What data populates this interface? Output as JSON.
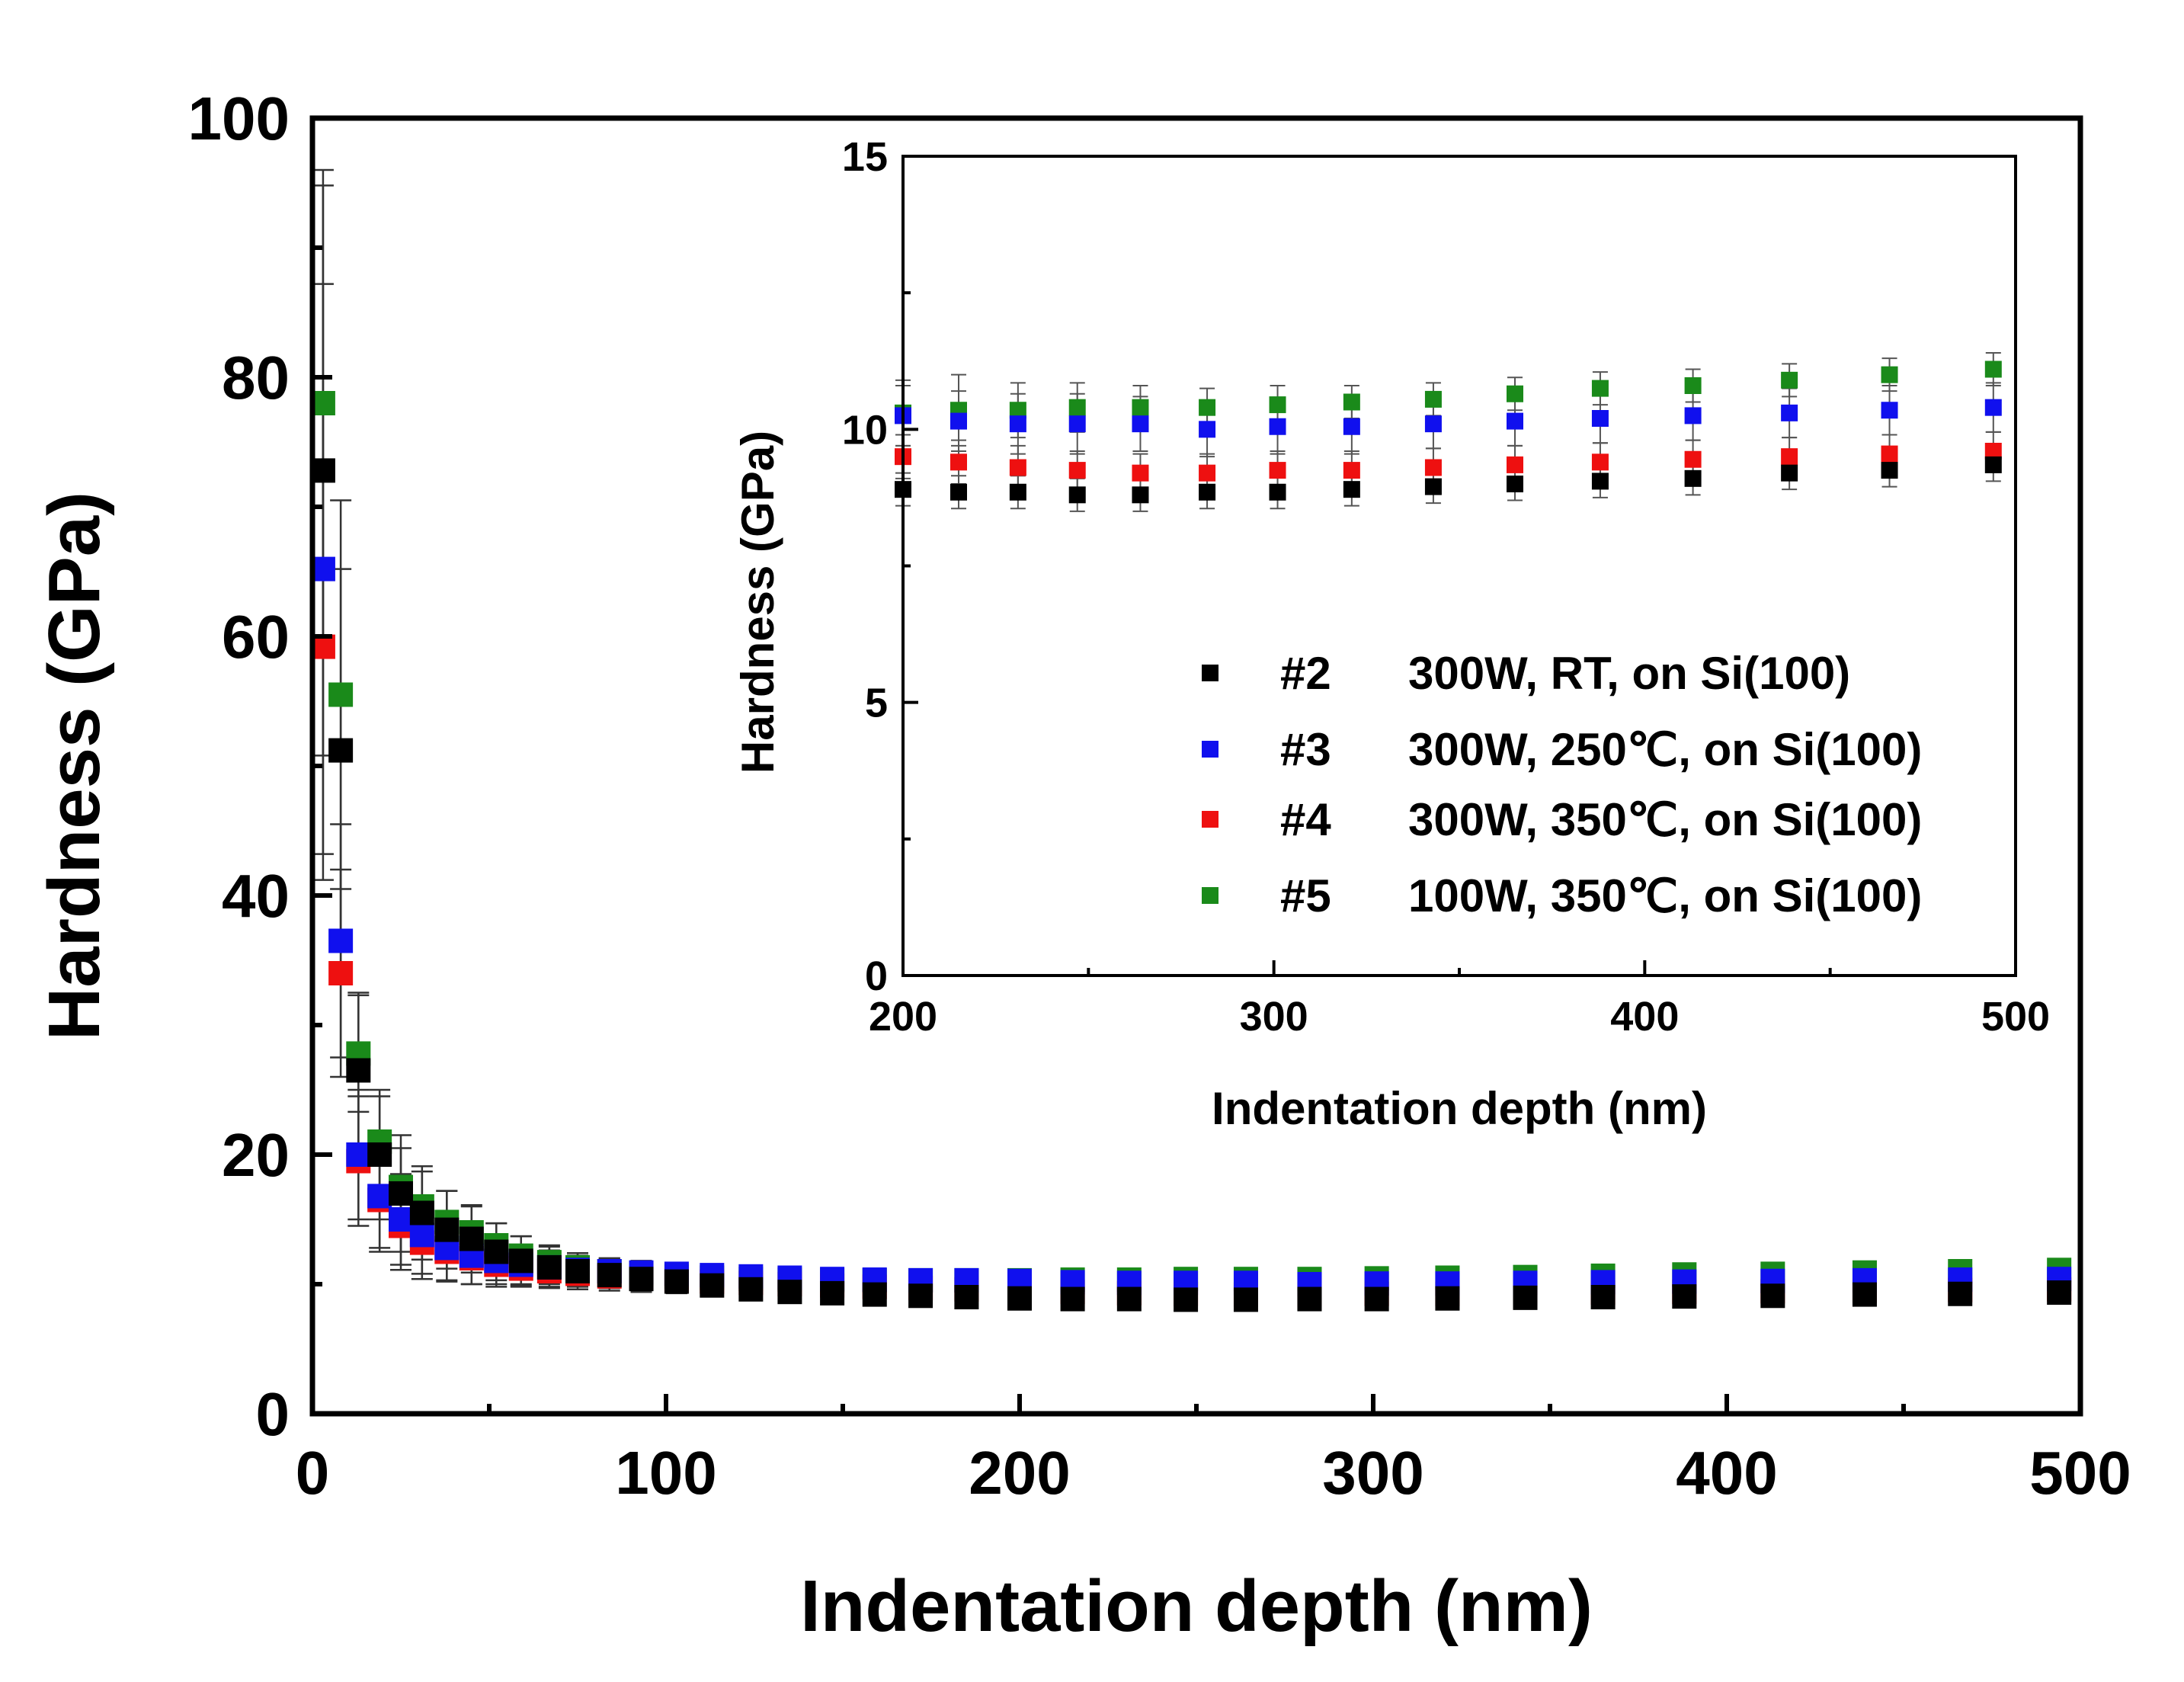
{
  "chart_data": [
    {
      "type": "scatter",
      "title": "",
      "xlabel": "Indentation depth (nm)",
      "ylabel": "Hardness (GPa)",
      "xlim": [
        0,
        500
      ],
      "ylim": [
        0,
        100
      ],
      "xticks": [
        0,
        100,
        200,
        300,
        400,
        500
      ],
      "yticks": [
        0,
        20,
        40,
        60,
        80,
        100
      ],
      "xtick_labels": [
        "0",
        "100",
        "200",
        "300",
        "400",
        "500"
      ],
      "ytick_labels": [
        "0",
        "20",
        "40",
        "60",
        "80",
        "100"
      ],
      "x": [
        3,
        8,
        13,
        19,
        25,
        31,
        38,
        45,
        52,
        59,
        67,
        75,
        84,
        93,
        103,
        113,
        124,
        135,
        147,
        159,
        172,
        185,
        200,
        215,
        231,
        247,
        264,
        282,
        301,
        321,
        343,
        365,
        388,
        413,
        439,
        466,
        494
      ],
      "series": [
        {
          "name": "#2",
          "color": "#000000",
          "values": [
            72.8,
            51.2,
            26.5,
            20.0,
            17.0,
            15.5,
            14.2,
            13.5,
            12.5,
            11.8,
            11.3,
            11.0,
            10.7,
            10.4,
            10.2,
            9.9,
            9.6,
            9.4,
            9.3,
            9.2,
            9.1,
            9.0,
            8.9,
            8.85,
            8.85,
            8.8,
            8.8,
            8.85,
            8.85,
            8.9,
            8.95,
            9.0,
            9.05,
            9.1,
            9.2,
            9.25,
            9.35
          ],
          "errors": [
            22.0,
            14.0,
            6.0,
            5.0,
            4.5,
            3.6,
            3.0,
            2.6,
            2.2,
            1.9,
            1.6,
            1.4,
            1.2,
            1.0,
            0.9,
            0.8,
            0.7,
            0.6,
            0.5,
            0.45,
            0.4,
            0.35,
            0.3,
            0.3,
            0.3,
            0.3,
            0.3,
            0.3,
            0.3,
            0.3,
            0.3,
            0.3,
            0.3,
            0.3,
            0.3,
            0.3,
            0.3
          ]
        },
        {
          "name": "#3",
          "color": "#1010ee",
          "values": [
            65.2,
            36.5,
            20.0,
            16.8,
            15.0,
            13.8,
            12.8,
            12.2,
            11.8,
            11.5,
            11.3,
            11.1,
            11.0,
            10.9,
            10.8,
            10.7,
            10.6,
            10.5,
            10.4,
            10.35,
            10.3,
            10.3,
            10.25,
            10.15,
            10.1,
            10.1,
            10.1,
            10.0,
            10.05,
            10.05,
            10.1,
            10.15,
            10.2,
            10.25,
            10.3,
            10.35,
            10.4
          ],
          "errors": [
            22.0,
            9.0,
            5.0,
            4.0,
            3.5,
            3.0,
            2.5,
            2.2,
            1.8,
            1.5,
            1.3,
            1.1,
            1.0,
            0.9,
            0.8,
            0.7,
            0.65,
            0.6,
            0.6,
            0.6,
            0.55,
            0.55,
            0.55,
            0.55,
            0.55,
            0.55,
            0.5,
            0.5,
            0.5,
            0.5,
            0.45,
            0.45,
            0.45,
            0.45,
            0.45,
            0.45,
            0.45
          ]
        },
        {
          "name": "#4",
          "color": "#ee1010",
          "values": [
            59.2,
            34.0,
            19.5,
            16.5,
            14.5,
            13.2,
            12.5,
            12.0,
            11.5,
            11.2,
            11.0,
            10.8,
            10.6,
            10.5,
            10.3,
            10.2,
            10.1,
            10.0,
            9.9,
            9.8,
            9.7,
            9.6,
            9.5,
            9.4,
            9.3,
            9.25,
            9.2,
            9.2,
            9.25,
            9.25,
            9.3,
            9.35,
            9.4,
            9.45,
            9.5,
            9.55,
            9.6
          ],
          "errors": [
            18.0,
            8.0,
            5.0,
            4.0,
            3.4,
            2.8,
            2.3,
            2.0,
            1.7,
            1.4,
            1.2,
            1.0,
            0.9,
            0.8,
            0.7,
            0.6,
            0.55,
            0.5,
            0.5,
            0.45,
            0.45,
            0.4,
            0.4,
            0.4,
            0.4,
            0.35,
            0.35,
            0.35,
            0.35,
            0.35,
            0.35,
            0.35,
            0.35,
            0.35,
            0.35,
            0.35,
            0.35
          ]
        },
        {
          "name": "#5",
          "color": "#1a8a1a",
          "values": [
            78.0,
            55.5,
            27.8,
            21.0,
            17.5,
            16.0,
            14.8,
            14.0,
            13.0,
            12.2,
            11.7,
            11.3,
            11.0,
            10.8,
            10.6,
            10.5,
            10.4,
            10.35,
            10.3,
            10.3,
            10.3,
            10.3,
            10.3,
            10.35,
            10.35,
            10.4,
            10.4,
            10.4,
            10.45,
            10.5,
            10.55,
            10.65,
            10.75,
            10.8,
            10.9,
            11.0,
            11.1
          ],
          "errors": [
            18.0,
            15.0,
            4.5,
            3.5,
            3.0,
            2.7,
            2.4,
            2.0,
            1.7,
            1.5,
            1.3,
            1.1,
            1.0,
            0.9,
            0.8,
            0.7,
            0.6,
            0.55,
            0.55,
            0.55,
            0.6,
            0.6,
            0.6,
            0.65,
            0.5,
            0.45,
            0.4,
            0.35,
            0.35,
            0.3,
            0.3,
            0.3,
            0.3,
            0.3,
            0.3,
            0.3,
            0.3
          ]
        }
      ]
    },
    {
      "type": "scatter",
      "title": "",
      "xlabel": "Indentation depth (nm)",
      "ylabel": "Hardness (GPa)",
      "xlim": [
        200,
        500
      ],
      "ylim": [
        0,
        15
      ],
      "xticks": [
        200,
        300,
        400,
        500
      ],
      "yticks": [
        0,
        5,
        10,
        15
      ],
      "xtick_labels": [
        "200",
        "300",
        "400",
        "500"
      ],
      "ytick_labels": [
        "0",
        "5",
        "10",
        "15"
      ],
      "legend_location": "lower-right",
      "legend": [
        {
          "marker_label": "#2",
          "text": "300W, RT, on Si(100)",
          "color": "#000000"
        },
        {
          "marker_label": "#3",
          "text": "300W, 250℃, on Si(100)",
          "color": "#1010ee"
        },
        {
          "marker_label": "#4",
          "text": "300W, 350℃, on Si(100)",
          "color": "#ee1010"
        },
        {
          "marker_label": "#5",
          "text": "100W, 350℃, on Si(100)",
          "color": "#1a8a1a"
        }
      ],
      "x": [
        200,
        215,
        231,
        247,
        264,
        282,
        301,
        321,
        343,
        365,
        388,
        413,
        439,
        466,
        494
      ],
      "series": [
        {
          "name": "#2",
          "color": "#000000",
          "values": [
            8.9,
            8.85,
            8.85,
            8.8,
            8.8,
            8.85,
            8.85,
            8.9,
            8.95,
            9.0,
            9.05,
            9.1,
            9.2,
            9.25,
            9.35
          ],
          "errors": [
            0.3,
            0.3,
            0.3,
            0.3,
            0.3,
            0.3,
            0.3,
            0.3,
            0.3,
            0.3,
            0.3,
            0.3,
            0.3,
            0.3,
            0.3
          ]
        },
        {
          "name": "#3",
          "color": "#1010ee",
          "values": [
            10.25,
            10.15,
            10.1,
            10.1,
            10.1,
            10.0,
            10.05,
            10.05,
            10.1,
            10.15,
            10.2,
            10.25,
            10.3,
            10.35,
            10.4
          ],
          "errors": [
            0.55,
            0.55,
            0.55,
            0.55,
            0.5,
            0.5,
            0.5,
            0.5,
            0.45,
            0.45,
            0.45,
            0.45,
            0.45,
            0.45,
            0.45
          ]
        },
        {
          "name": "#4",
          "color": "#ee1010",
          "values": [
            9.5,
            9.4,
            9.3,
            9.25,
            9.2,
            9.2,
            9.25,
            9.25,
            9.3,
            9.35,
            9.4,
            9.45,
            9.5,
            9.55,
            9.6
          ],
          "errors": [
            0.4,
            0.4,
            0.4,
            0.35,
            0.35,
            0.35,
            0.35,
            0.35,
            0.35,
            0.35,
            0.35,
            0.35,
            0.35,
            0.35,
            0.35
          ]
        },
        {
          "name": "#5",
          "color": "#1a8a1a",
          "values": [
            10.3,
            10.35,
            10.35,
            10.4,
            10.4,
            10.4,
            10.45,
            10.5,
            10.55,
            10.65,
            10.75,
            10.8,
            10.9,
            11.0,
            11.1
          ],
          "errors": [
            0.6,
            0.65,
            0.5,
            0.45,
            0.4,
            0.35,
            0.35,
            0.3,
            0.3,
            0.3,
            0.3,
            0.3,
            0.3,
            0.3,
            0.3
          ]
        }
      ]
    }
  ]
}
